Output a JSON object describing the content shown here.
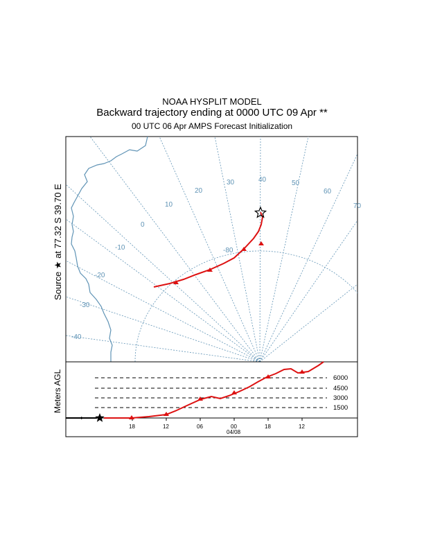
{
  "title": {
    "line1": "NOAA HYSPLIT MODEL",
    "line2": "Backward trajectory ending at 0000 UTC 09 Apr **",
    "line3": "00 UTC 06 Apr    AMPS  Forecast Initialization"
  },
  "source_label": "Source ★ at   77.32 S   39.70 E",
  "vertical_label": "Meters AGL",
  "meridian_labels": [
    "-40",
    "-30",
    "-20",
    "-10",
    "0",
    "10",
    "20",
    "30",
    "40",
    "50",
    "60",
    "70"
  ],
  "parallel_labels": [
    "-80"
  ],
  "height_levels": [
    "6000",
    "4500",
    "3000",
    "1500"
  ],
  "time_ticks": [
    "18",
    "12",
    "06",
    "00",
    "18",
    "12"
  ],
  "date_label": "04/08",
  "colors": {
    "trajectory": "#dd1111",
    "grid": "#5f93b5",
    "coast": "#5f93b5"
  }
}
